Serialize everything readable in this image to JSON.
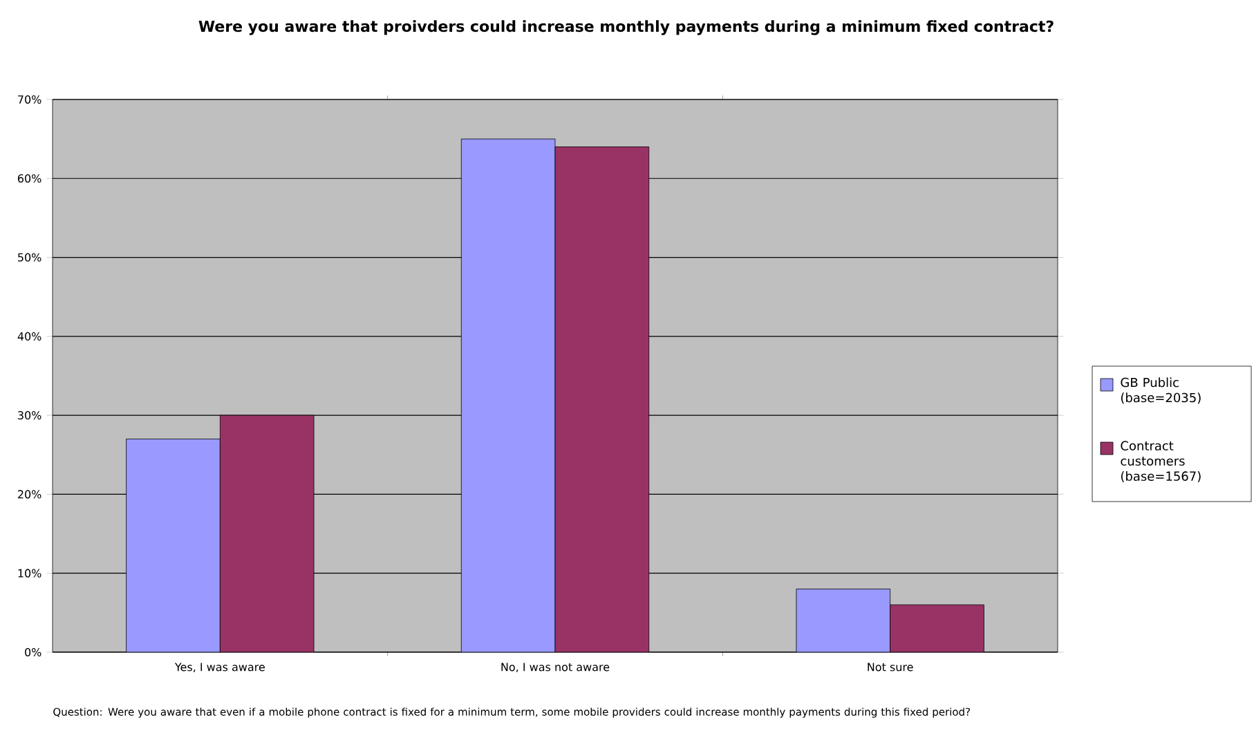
{
  "chart_data": {
    "type": "bar",
    "title": "Were you aware that proivders could increase monthly payments during a minimum fixed contract?",
    "categories": [
      "Yes, I was aware",
      "No, I was not aware",
      "Not sure"
    ],
    "series": [
      {
        "name": "GB Public (base=2035)",
        "color": "#9999ff",
        "values": [
          27,
          65,
          8
        ]
      },
      {
        "name": "Contract customers (base=1567)",
        "color": "#993366",
        "values": [
          30,
          64,
          6
        ]
      }
    ],
    "ylim": [
      0,
      70
    ],
    "yticks": [
      {
        "value": 0,
        "label": "0%"
      },
      {
        "value": 10,
        "label": "10%"
      },
      {
        "value": 20,
        "label": "20%"
      },
      {
        "value": 30,
        "label": "30%"
      },
      {
        "value": 40,
        "label": "40%"
      },
      {
        "value": 50,
        "label": "50%"
      },
      {
        "value": 60,
        "label": "60%"
      },
      {
        "value": 70,
        "label": "70%"
      }
    ],
    "grid": "y",
    "legend": "right",
    "annotations": [
      "Question: Were you aware that even if a mobile phone contract is fixed for a minimum term, some mobile providers could increase monthly payments during this fixed period?"
    ]
  }
}
